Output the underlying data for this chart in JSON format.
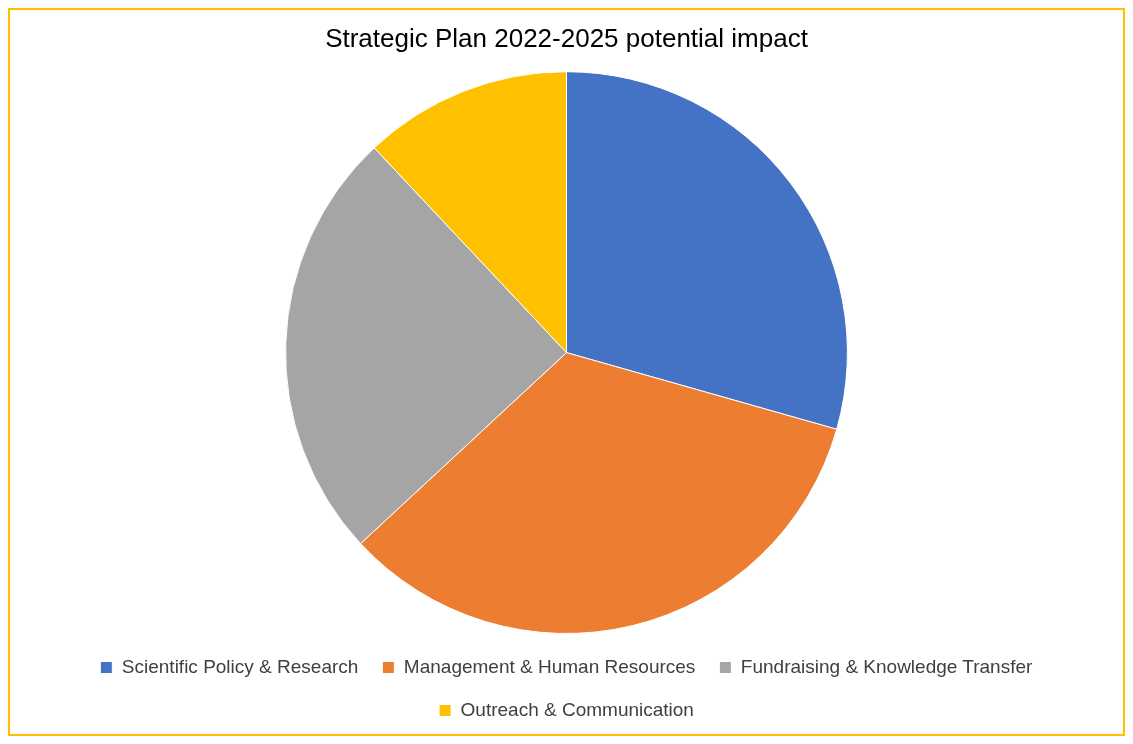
{
  "chart_data": {
    "type": "pie",
    "title": "Strategic Plan 2022-2025 potential impact",
    "categories": [
      "Scientific Policy & Research",
      "Management & Human Resources",
      "Fundraising & Knowledge Transfer",
      "Outreach & Communication"
    ],
    "values": [
      29.4,
      33.7,
      24.9,
      12.0
    ],
    "colors": [
      "#4472c4",
      "#ed7d31",
      "#a5a5a5",
      "#ffc000"
    ],
    "legend": "bottom"
  }
}
